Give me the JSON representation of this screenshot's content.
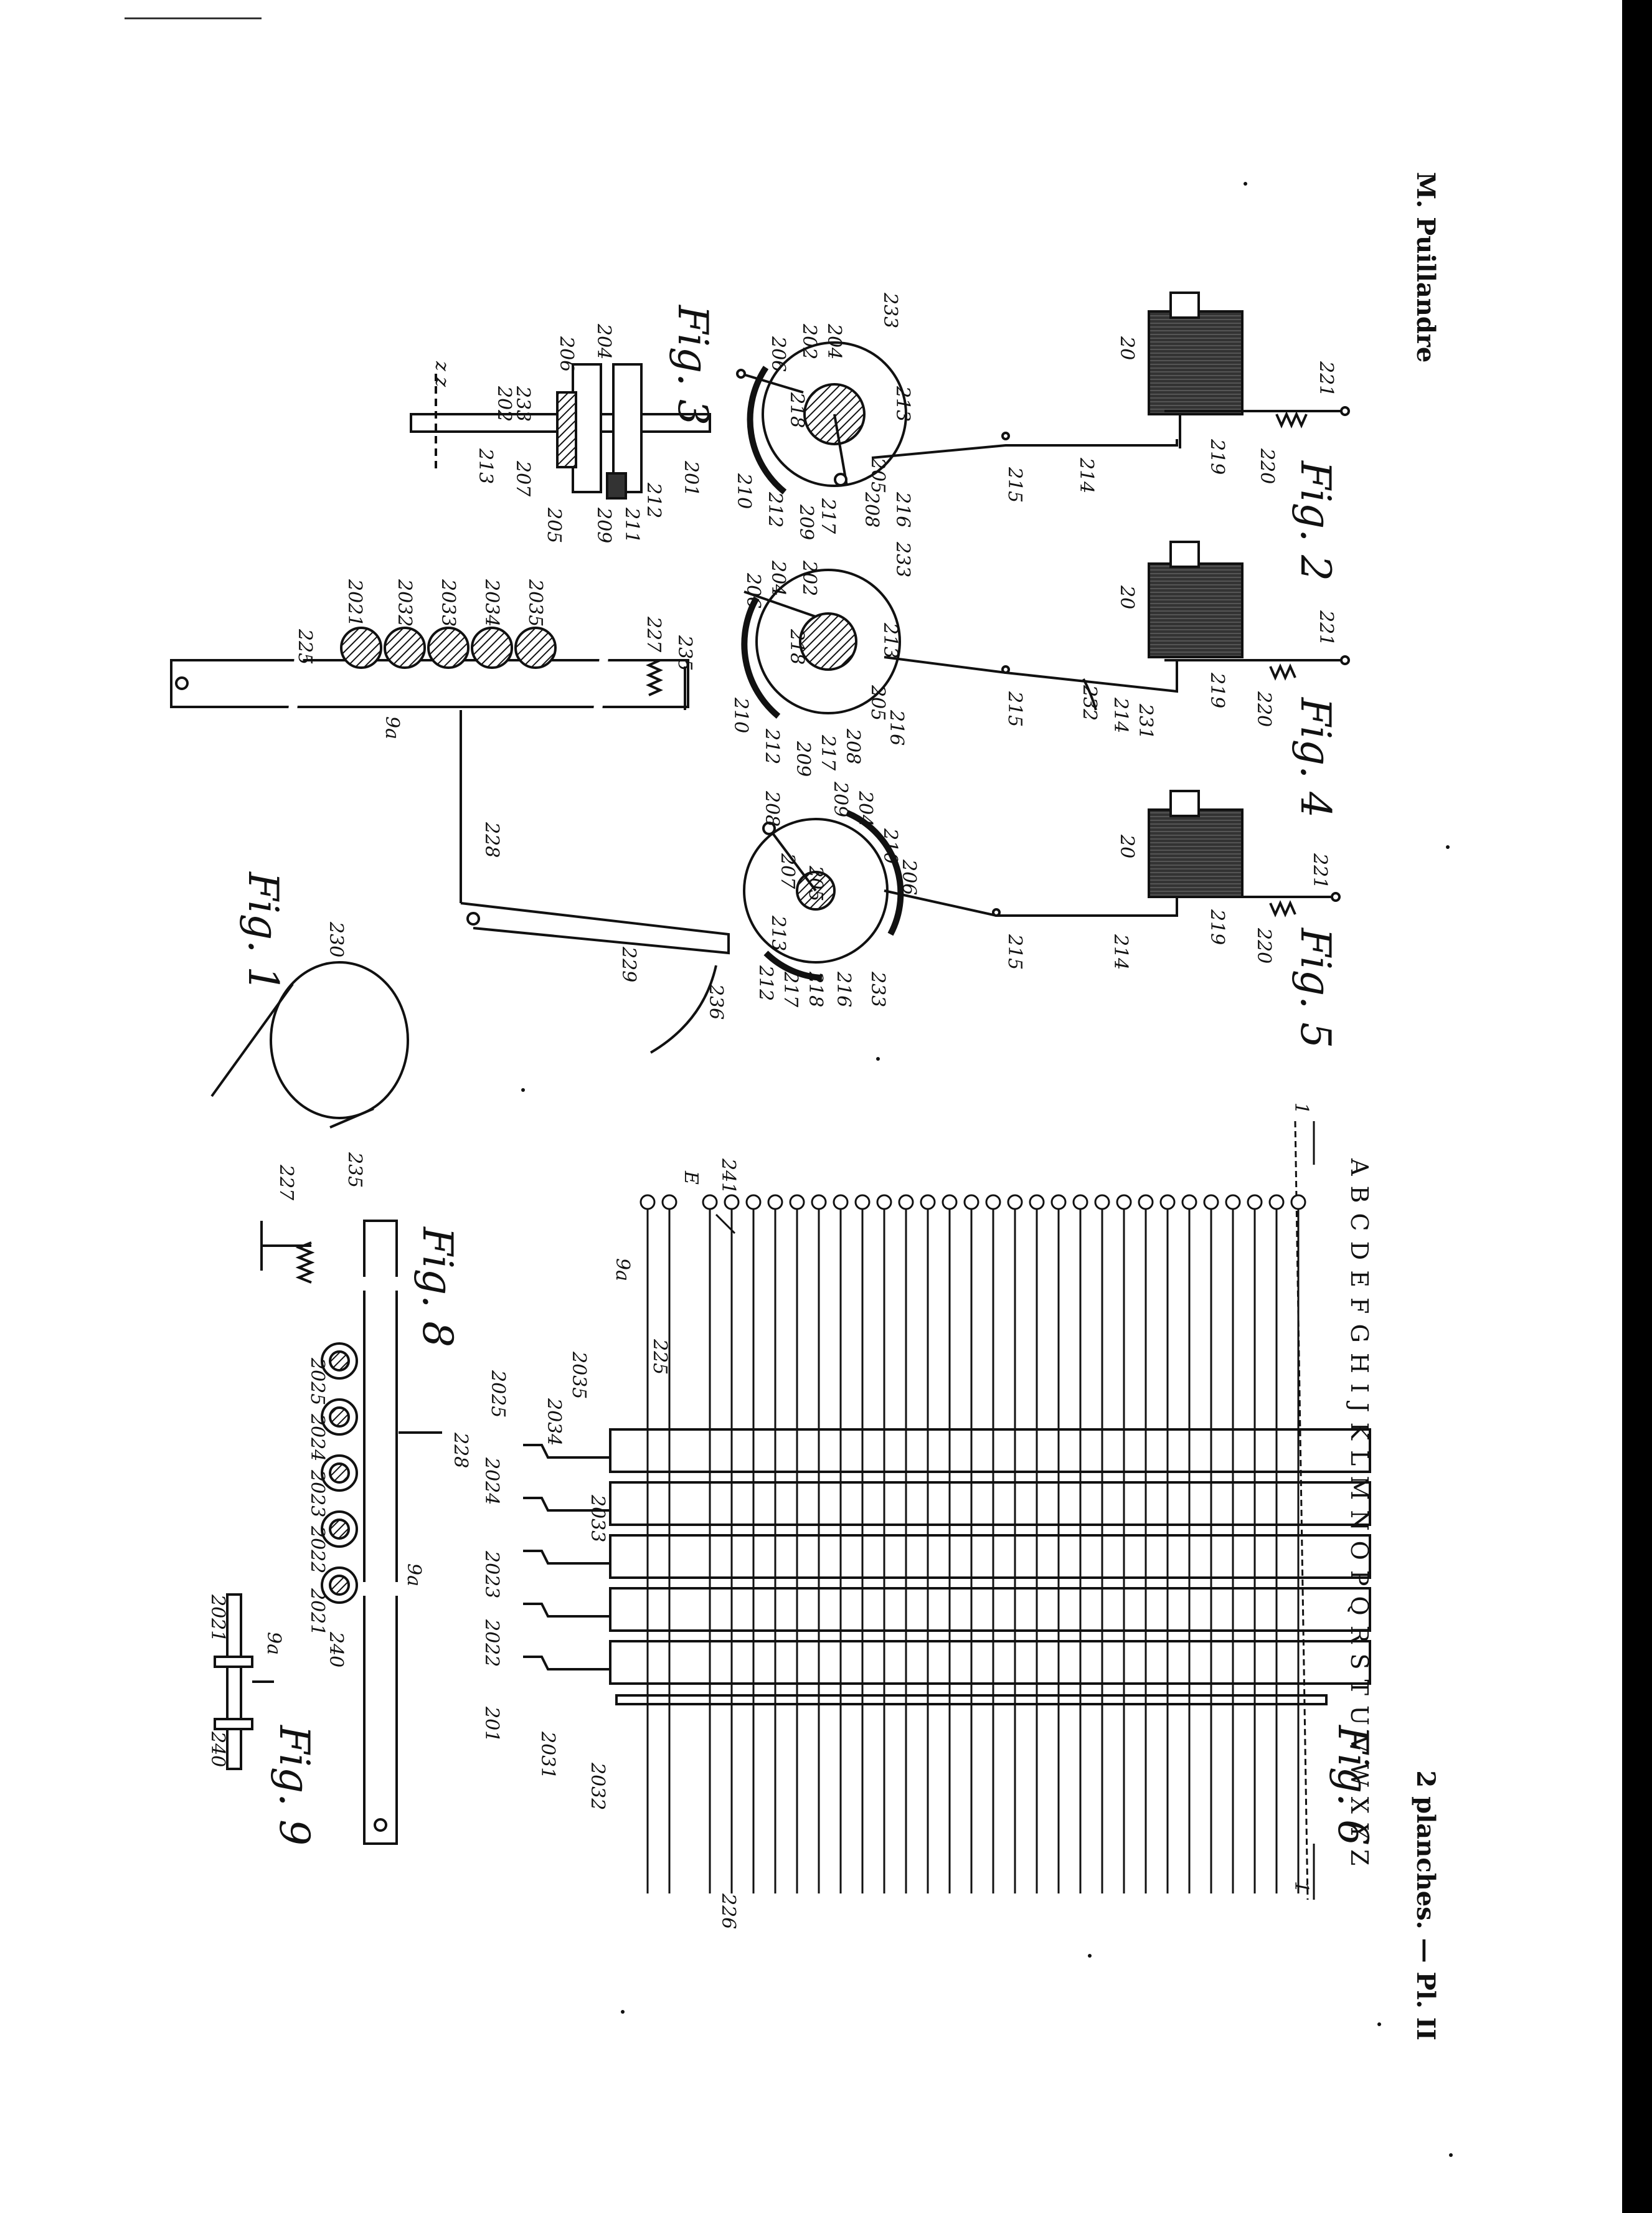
{
  "header": {
    "author": "M. Puillandre",
    "plate": "2 planches. — Pl. II",
    "fragment": "·· ·····"
  },
  "figures": {
    "fig1": "Fig. 1",
    "fig2": "Fig. 2",
    "fig3": "Fig. 3",
    "fig4": "Fig. 4",
    "fig5": "Fig. 5",
    "fig6": "Fig. 6",
    "fig8": "Fig. 8",
    "fig9": "Fig. 9"
  },
  "alphabet": "A B C D E F G H I J K L M N O P Q R S T U V W X Y Z",
  "labels": {
    "n20": "20",
    "n221": "221",
    "n219": "219",
    "n220": "220",
    "n214": "214",
    "n215": "215",
    "n213": "213",
    "n216": "216",
    "n205": "205",
    "n201": "201",
    "n208": "208",
    "n217": "217",
    "n209": "209",
    "n212": "212",
    "n210": "210",
    "n218": "218",
    "n206": "206",
    "n207": "207",
    "n202": "202",
    "n204": "204",
    "n233": "233",
    "n231": "231",
    "n232": "232",
    "n211": "211",
    "n225": "225",
    "n227": "227",
    "n235": "235",
    "n228": "228",
    "n229": "229",
    "n230": "230",
    "n236": "236",
    "n9a": "9a",
    "n241": "241",
    "n226": "226",
    "n240": "240",
    "n2031": "2031",
    "n2032": "2032",
    "n2033": "2033",
    "n2034": "2034",
    "n2035": "2035",
    "n2021": "2021",
    "n2022": "2022",
    "n2023": "2023",
    "n2024": "2024",
    "n2025": "2025",
    "n2101": "201",
    "line11": "1",
    "line12": "1",
    "e": "E",
    "zz": "z  z"
  }
}
